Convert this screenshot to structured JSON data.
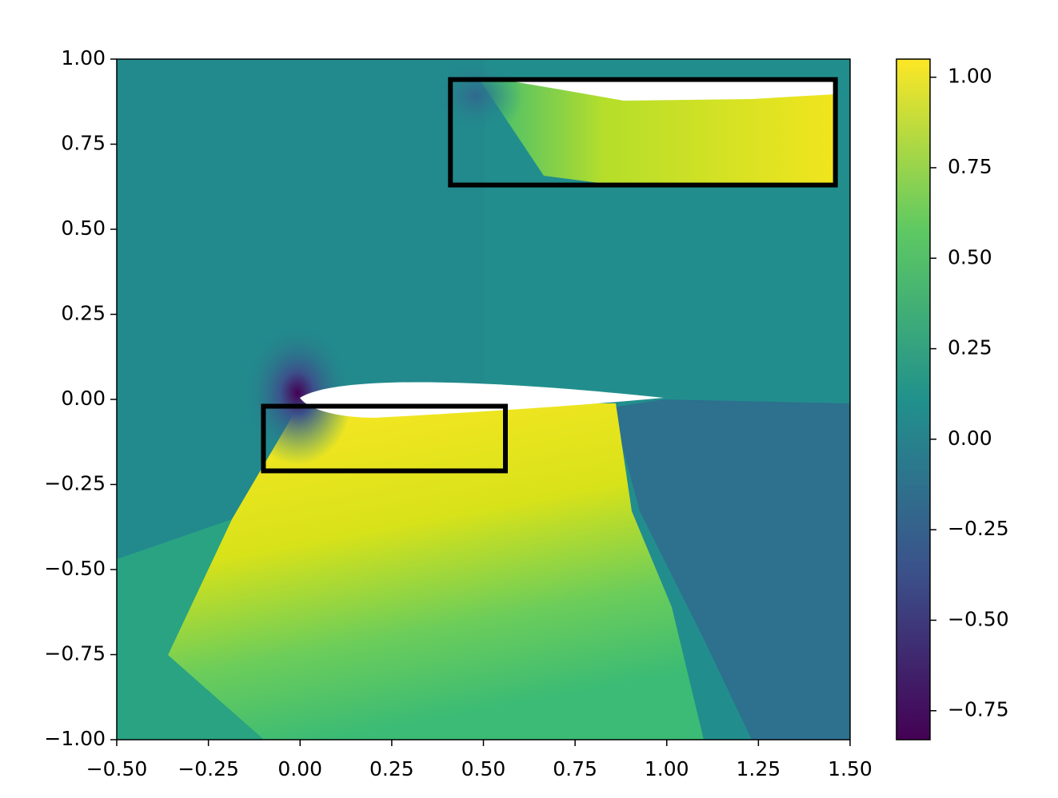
{
  "chart_data": {
    "type": "field",
    "xlim": [
      -0.5,
      1.5
    ],
    "xticks": [
      {
        "value": -0.5,
        "label": "−0.50"
      },
      {
        "value": -0.25,
        "label": "−0.25"
      },
      {
        "value": 0,
        "label": "0.00"
      },
      0.25,
      {
        "value": 0.5,
        "label": "0.50"
      },
      0.75,
      {
        "value": 1,
        "label": "1.00"
      },
      1.25,
      {
        "value": 1.5,
        "label": "1.50"
      }
    ],
    "ylim": [
      -1,
      1
    ],
    "yticks": [
      {
        "value": -1,
        "label": "−1.00"
      },
      {
        "value": -0.75,
        "label": "−0.75"
      },
      {
        "value": -0.5,
        "label": "−0.50"
      },
      {
        "value": -0.25,
        "label": "−0.25"
      },
      {
        "value": 0,
        "label": "0.00"
      },
      0.25,
      {
        "value": 0.5,
        "label": "0.50"
      },
      0.75,
      {
        "value": 1,
        "label": "1.00"
      }
    ],
    "clim": [
      -0.83,
      1.05
    ],
    "cticks": [
      {
        "value": -0.75,
        "label": "−0.75"
      },
      {
        "value": -0.5,
        "label": "−0.50"
      },
      {
        "value": -0.25,
        "label": "−0.25"
      },
      {
        "value": 0,
        "label": "0.00"
      },
      0.25,
      {
        "value": 0.5,
        "label": "0.50"
      },
      0.75,
      {
        "value": 1,
        "label": "1.00"
      }
    ],
    "colormap": [
      "#440154",
      "#3b528b",
      "#21918c",
      "#5ec962",
      "#fde725"
    ],
    "boxes": [
      {
        "x": [
          0.41,
          1.46
        ],
        "y": [
          0.63,
          0.94
        ]
      },
      {
        "x": [
          -0.1,
          0.56
        ],
        "y": [
          -0.21,
          -0.02
        ]
      }
    ],
    "box_color": "#000000"
  }
}
